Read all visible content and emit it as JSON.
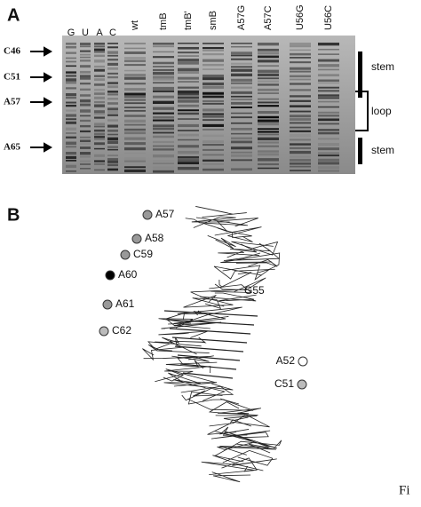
{
  "panels": {
    "a": {
      "label": "A",
      "lanes": [
        "G",
        "U",
        "A",
        "C",
        "wt",
        "tmB",
        "tmB'",
        "smB",
        "A57G",
        "A57C",
        "U56G",
        "U56C"
      ],
      "markers": [
        "C46",
        "C51",
        "A57",
        "A65"
      ],
      "regions": [
        "stem",
        "loop",
        "stem"
      ]
    },
    "b": {
      "label": "B",
      "residues": [
        {
          "label": "A57",
          "color": "#999"
        },
        {
          "label": "A58",
          "color": "#999"
        },
        {
          "label": "C59",
          "color": "#999"
        },
        {
          "label": "A60",
          "color": "#000"
        },
        {
          "label": "A61",
          "color": "#999"
        },
        {
          "label": "C62",
          "color": "#bbb"
        },
        {
          "label": "G55",
          "color": null
        },
        {
          "label": "A52",
          "color": "#fff"
        },
        {
          "label": "C51",
          "color": "#bbb"
        }
      ]
    }
  },
  "caption": "Fi"
}
